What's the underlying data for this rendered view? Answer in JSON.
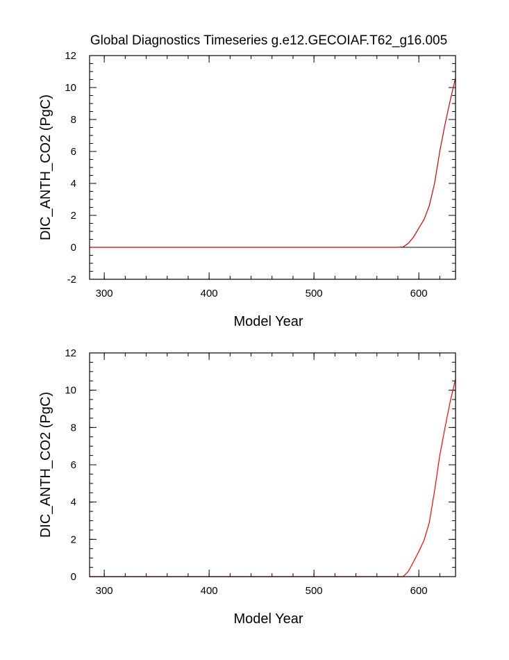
{
  "page_title": "Global Diagnostics Timeseries g.e12.GECOIAF.T62_g16.005",
  "chart_data": [
    {
      "type": "line",
      "title": "Global Diagnostics Timeseries g.e12.GECOIAF.T62_g16.005",
      "xlabel": "Model Year",
      "ylabel": "DIC_ANTH_CO2 (PgC)",
      "xlim": [
        286,
        635
      ],
      "ylim": [
        -2,
        12
      ],
      "xticks": [
        300,
        400,
        500,
        600
      ],
      "yticks": [
        -2,
        0,
        2,
        4,
        6,
        8,
        10,
        12
      ],
      "zero_line": true,
      "series": [
        {
          "color": "#cc0000",
          "x": [
            286,
            580,
            585,
            590,
            595,
            600,
            605,
            610,
            615,
            620,
            625,
            630,
            635
          ],
          "y": [
            0,
            0,
            0.02,
            0.25,
            0.65,
            1.2,
            1.75,
            2.6,
            4.0,
            6.0,
            7.7,
            9.2,
            10.6
          ]
        }
      ]
    },
    {
      "type": "line",
      "title": "",
      "xlabel": "Model Year",
      "ylabel": "DIC_ANTH_CO2 (PgC)",
      "xlim": [
        286,
        635
      ],
      "ylim": [
        0,
        12
      ],
      "xticks": [
        300,
        400,
        500,
        600
      ],
      "yticks": [
        0,
        2,
        4,
        6,
        8,
        10,
        12
      ],
      "zero_line": false,
      "series": [
        {
          "color": "#ff0000",
          "x": [
            286,
            585,
            590,
            595,
            600,
            605,
            610,
            615,
            620,
            625,
            630,
            635
          ],
          "y": [
            0,
            0,
            0.28,
            0.8,
            1.35,
            1.95,
            2.9,
            4.6,
            6.5,
            8.0,
            9.4,
            10.6
          ]
        }
      ]
    }
  ]
}
